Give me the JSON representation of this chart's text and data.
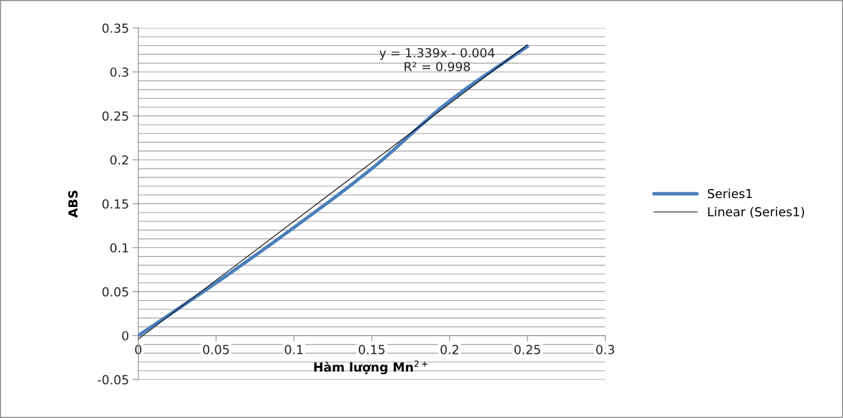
{
  "chart_data": {
    "type": "line",
    "xlabel": "Hàm lượng Mn$^{2+}$",
    "ylabel": "ABS",
    "x": [
      0,
      0.05,
      0.1,
      0.15,
      0.2,
      0.25
    ],
    "series": [
      {
        "name": "Series1",
        "color": "#4a7ebb",
        "values": [
          0,
          0.06,
          0.123,
          0.19,
          0.267,
          0.329
        ]
      },
      {
        "name": "Linear (Series1)",
        "color": "#000000",
        "x": [
          0,
          0.25
        ],
        "values": [
          -0.004,
          0.331
        ]
      }
    ],
    "annotations": [
      "y = 1.339x - 0.004\nR² = 0.998"
    ],
    "xlim": [
      0,
      0.3
    ],
    "ylim": [
      -0.05,
      0.35
    ],
    "xticks": [
      0,
      0.05,
      0.1,
      0.15,
      0.2,
      0.25,
      0.3
    ],
    "yticks": [
      -0.05,
      {
        "value": -0.04,
        "label": null
      },
      {
        "value": -0.03,
        "label": null
      },
      {
        "value": -0.02,
        "label": null
      },
      {
        "value": -0.01,
        "label": null
      },
      0,
      {
        "value": 0.01,
        "label": null
      },
      {
        "value": 0.02,
        "label": null
      },
      {
        "value": 0.03,
        "label": null
      },
      {
        "value": 0.04,
        "label": null
      },
      0.05,
      {
        "value": 0.06,
        "label": null
      },
      {
        "value": 0.07,
        "label": null
      },
      {
        "value": 0.08,
        "label": null
      },
      {
        "value": 0.09,
        "label": null
      },
      0.1,
      {
        "value": 0.11,
        "label": null
      },
      {
        "value": 0.12,
        "label": null
      },
      {
        "value": 0.13,
        "label": null
      },
      {
        "value": 0.14,
        "label": null
      },
      0.15,
      {
        "value": 0.16,
        "label": null
      },
      {
        "value": 0.17,
        "label": null
      },
      {
        "value": 0.18,
        "label": null
      },
      {
        "value": 0.19,
        "label": null
      },
      0.2,
      {
        "value": 0.21,
        "label": null
      },
      {
        "value": 0.22,
        "label": null
      },
      {
        "value": 0.23,
        "label": null
      },
      {
        "value": 0.24,
        "label": null
      },
      0.25,
      {
        "value": 0.26,
        "label": null
      },
      {
        "value": 0.27,
        "label": null
      },
      {
        "value": 0.28,
        "label": null
      },
      {
        "value": 0.29,
        "label": null
      },
      0.3,
      {
        "value": 0.31,
        "label": null
      },
      {
        "value": 0.32,
        "label": null
      },
      {
        "value": 0.33,
        "label": null
      },
      {
        "value": 0.34,
        "label": null
      },
      0.35
    ],
    "grid": "y",
    "legend": "right",
    "marker": "none"
  }
}
